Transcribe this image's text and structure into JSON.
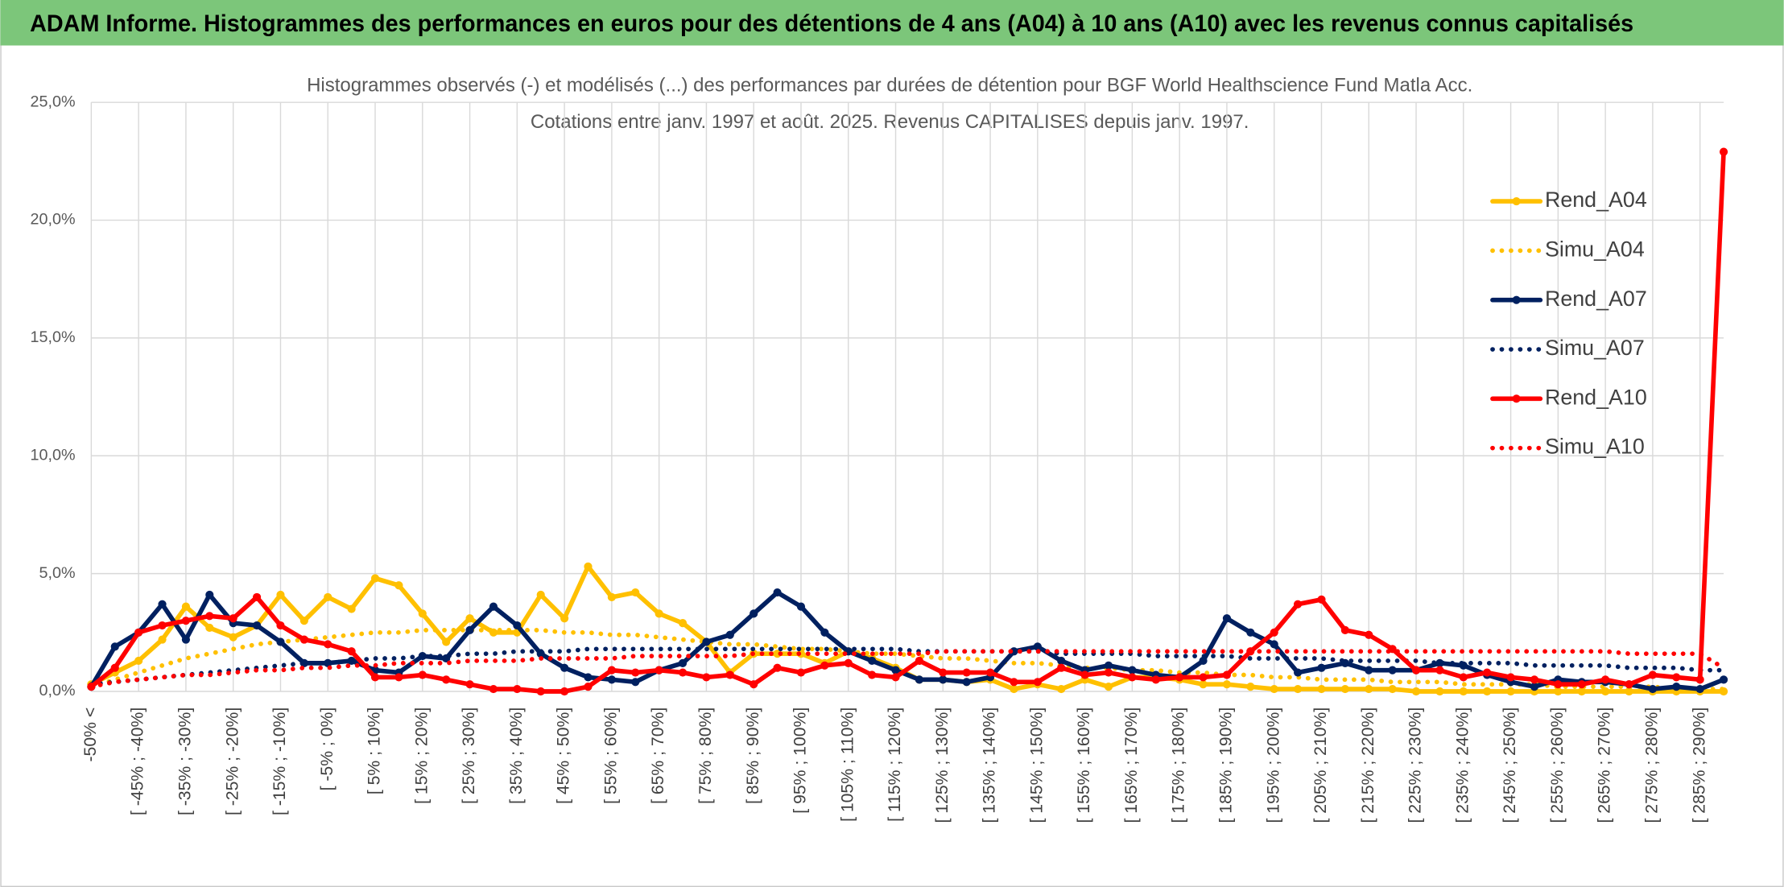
{
  "header": {
    "title": "ADAM Informe. Histogrammes des performances en euros pour des détentions de 4 ans (A04) à 10 ans (A10) avec les revenus connus capitalisés"
  },
  "chart_data": {
    "type": "line",
    "title": "Histogrammes observés (-) et modélisés (...) des performances par durées de détention pour BGF World Healthscience Fund Matla Acc.",
    "subtitle": "Cotations entre janv. 1997 et août. 2025. Revenus CAPITALISES depuis janv. 1997.",
    "categories": [
      "-50% <",
      null,
      "[ -45% ; -40%]",
      null,
      "[ -35% ; -30%]",
      null,
      "[ -25% ; -20%]",
      null,
      "[ -15% ; -10%]",
      null,
      "[ -5% ; 0%]",
      null,
      "[ 5% ; 10%]",
      null,
      "[ 15% ; 20%]",
      null,
      "[ 25% ; 30%]",
      null,
      "[ 35% ; 40%]",
      null,
      "[ 45% ; 50%]",
      null,
      "[ 55% ; 60%]",
      null,
      "[ 65% ; 70%]",
      null,
      "[ 75% ; 80%]",
      null,
      "[ 85% ; 90%]",
      null,
      "[ 95% ; 100%]",
      null,
      "[ 105% ; 110%]",
      null,
      "[ 115% ; 120%]",
      null,
      "[ 125% ; 130%]",
      null,
      "[ 135% ; 140%]",
      null,
      "[ 145% ; 150%]",
      null,
      "[ 155% ; 160%]",
      null,
      "[ 165% ; 170%]",
      null,
      "[ 175% ; 180%]",
      null,
      "[ 185% ; 190%]",
      null,
      "[ 195% ; 200%]",
      null,
      "[ 205% ; 210%]",
      null,
      "[ 215% ; 220%]",
      null,
      "[ 225% ; 230%]",
      null,
      "[ 235% ; 240%]",
      null,
      "[ 245% ; 250%]",
      null,
      "[ 255% ; 260%]",
      null,
      "[ 265% ; 270%]",
      null,
      "[ 275% ; 280%]",
      null,
      "[ 285% ; 290%]",
      null
    ],
    "ylim": [
      0,
      25
    ],
    "yticks": [
      {
        "value": 0,
        "label": "0,0%"
      },
      {
        "value": 5,
        "label": "5,0%"
      },
      {
        "value": 10,
        "label": "10,0%"
      },
      {
        "value": 15,
        "label": "15,0%"
      },
      {
        "value": 20,
        "label": "20,0%"
      },
      {
        "value": 25,
        "label": "25,0%"
      }
    ],
    "grid": true,
    "legend": "right",
    "series": [
      {
        "name": "Rend_A04",
        "color": "#FFC000",
        "style": "solid",
        "markers": true,
        "values": [
          0.3,
          0.8,
          1.3,
          2.2,
          3.6,
          2.7,
          2.3,
          2.8,
          4.1,
          3.0,
          4.0,
          3.5,
          4.8,
          4.5,
          3.3,
          2.1,
          3.1,
          2.5,
          2.5,
          4.1,
          3.1,
          5.3,
          4.0,
          4.2,
          3.3,
          2.9,
          2.1,
          0.8,
          1.6,
          1.6,
          1.6,
          1.2,
          1.7,
          1.4,
          1.0,
          0.5,
          0.5,
          0.4,
          0.5,
          0.1,
          0.3,
          0.1,
          0.5,
          0.2,
          0.6,
          0.6,
          0.5,
          0.3,
          0.3,
          0.2,
          0.1,
          0.1,
          0.1,
          0.1,
          0.1,
          0.1,
          0,
          0,
          0,
          0,
          0,
          0,
          0,
          0,
          0,
          0,
          0,
          0,
          0,
          0
        ]
      },
      {
        "name": "Simu_A04",
        "color": "#FFC000",
        "style": "dotted",
        "markers": false,
        "values": [
          0.2,
          0.5,
          0.8,
          1.1,
          1.4,
          1.6,
          1.8,
          2.0,
          2.1,
          2.2,
          2.3,
          2.4,
          2.5,
          2.5,
          2.6,
          2.6,
          2.6,
          2.6,
          2.6,
          2.6,
          2.5,
          2.5,
          2.4,
          2.4,
          2.3,
          2.2,
          2.1,
          2.0,
          2.0,
          1.9,
          1.8,
          1.8,
          1.7,
          1.6,
          1.6,
          1.5,
          1.4,
          1.4,
          1.3,
          1.2,
          1.2,
          1.1,
          1.0,
          1.0,
          0.9,
          0.9,
          0.8,
          0.8,
          0.7,
          0.7,
          0.6,
          0.6,
          0.5,
          0.5,
          0.5,
          0.4,
          0.4,
          0.4,
          0.3,
          0.3,
          0.3,
          0.3,
          0.2,
          0.2,
          0.2,
          0.2,
          0.2,
          0.1,
          0.1,
          0.1
        ]
      },
      {
        "name": "Rend_A07",
        "color": "#002060",
        "style": "solid",
        "markers": true,
        "values": [
          0.2,
          1.9,
          2.5,
          3.7,
          2.2,
          4.1,
          2.9,
          2.8,
          2.1,
          1.2,
          1.2,
          1.3,
          0.9,
          0.8,
          1.5,
          1.4,
          2.6,
          3.6,
          2.8,
          1.6,
          1.0,
          0.6,
          0.5,
          0.4,
          0.9,
          1.2,
          2.1,
          2.4,
          3.3,
          4.2,
          3.6,
          2.5,
          1.7,
          1.3,
          0.9,
          0.5,
          0.5,
          0.4,
          0.6,
          1.7,
          1.9,
          1.3,
          0.9,
          1.1,
          0.9,
          0.7,
          0.6,
          1.3,
          3.1,
          2.5,
          2.0,
          0.8,
          1.0,
          1.2,
          0.9,
          0.9,
          0.9,
          1.2,
          1.1,
          0.7,
          0.4,
          0.2,
          0.5,
          0.4,
          0.4,
          0.3,
          0.1,
          0.2,
          0.1,
          0.5
        ]
      },
      {
        "name": "Simu_A07",
        "color": "#002060",
        "style": "dotted",
        "markers": false,
        "values": [
          0.3,
          0.4,
          0.5,
          0.6,
          0.7,
          0.8,
          0.9,
          1.0,
          1.1,
          1.2,
          1.2,
          1.3,
          1.4,
          1.4,
          1.5,
          1.5,
          1.6,
          1.6,
          1.7,
          1.7,
          1.7,
          1.8,
          1.8,
          1.8,
          1.8,
          1.8,
          1.8,
          1.8,
          1.8,
          1.8,
          1.8,
          1.8,
          1.8,
          1.8,
          1.8,
          1.7,
          1.7,
          1.7,
          1.7,
          1.7,
          1.7,
          1.6,
          1.6,
          1.6,
          1.6,
          1.5,
          1.5,
          1.5,
          1.5,
          1.4,
          1.4,
          1.4,
          1.4,
          1.3,
          1.3,
          1.3,
          1.3,
          1.2,
          1.2,
          1.2,
          1.2,
          1.1,
          1.1,
          1.1,
          1.1,
          1.0,
          1.0,
          1.0,
          0.9,
          0.9
        ]
      },
      {
        "name": "Rend_A10",
        "color": "#FF0000",
        "style": "solid",
        "markers": true,
        "values": [
          0.2,
          1.0,
          2.5,
          2.8,
          3.0,
          3.2,
          3.1,
          4.0,
          2.8,
          2.2,
          2.0,
          1.7,
          0.6,
          0.6,
          0.7,
          0.5,
          0.3,
          0.1,
          0.1,
          0.0,
          0.0,
          0.2,
          0.9,
          0.8,
          0.9,
          0.8,
          0.6,
          0.7,
          0.3,
          1.0,
          0.8,
          1.1,
          1.2,
          0.7,
          0.6,
          1.3,
          0.8,
          0.8,
          0.8,
          0.4,
          0.4,
          1.0,
          0.7,
          0.8,
          0.6,
          0.5,
          0.6,
          0.6,
          0.7,
          1.7,
          2.5,
          3.7,
          3.9,
          2.6,
          2.4,
          1.8,
          0.9,
          0.9,
          0.6,
          0.8,
          0.6,
          0.5,
          0.3,
          0.3,
          0.5,
          0.3,
          0.7,
          0.6,
          0.5,
          22.9
        ]
      },
      {
        "name": "Simu_A10",
        "color": "#FF0000",
        "style": "dotted",
        "markers": false,
        "values": [
          0.2,
          0.4,
          0.5,
          0.6,
          0.7,
          0.7,
          0.8,
          0.9,
          0.9,
          1.0,
          1.0,
          1.1,
          1.1,
          1.2,
          1.2,
          1.2,
          1.3,
          1.3,
          1.3,
          1.4,
          1.4,
          1.4,
          1.4,
          1.5,
          1.5,
          1.5,
          1.5,
          1.5,
          1.6,
          1.6,
          1.6,
          1.6,
          1.6,
          1.6,
          1.6,
          1.6,
          1.7,
          1.7,
          1.7,
          1.7,
          1.7,
          1.7,
          1.7,
          1.7,
          1.7,
          1.7,
          1.7,
          1.7,
          1.7,
          1.7,
          1.7,
          1.7,
          1.7,
          1.7,
          1.7,
          1.7,
          1.7,
          1.7,
          1.7,
          1.7,
          1.7,
          1.7,
          1.7,
          1.7,
          1.7,
          1.6,
          1.6,
          1.6,
          1.6,
          1.0
        ]
      }
    ]
  }
}
